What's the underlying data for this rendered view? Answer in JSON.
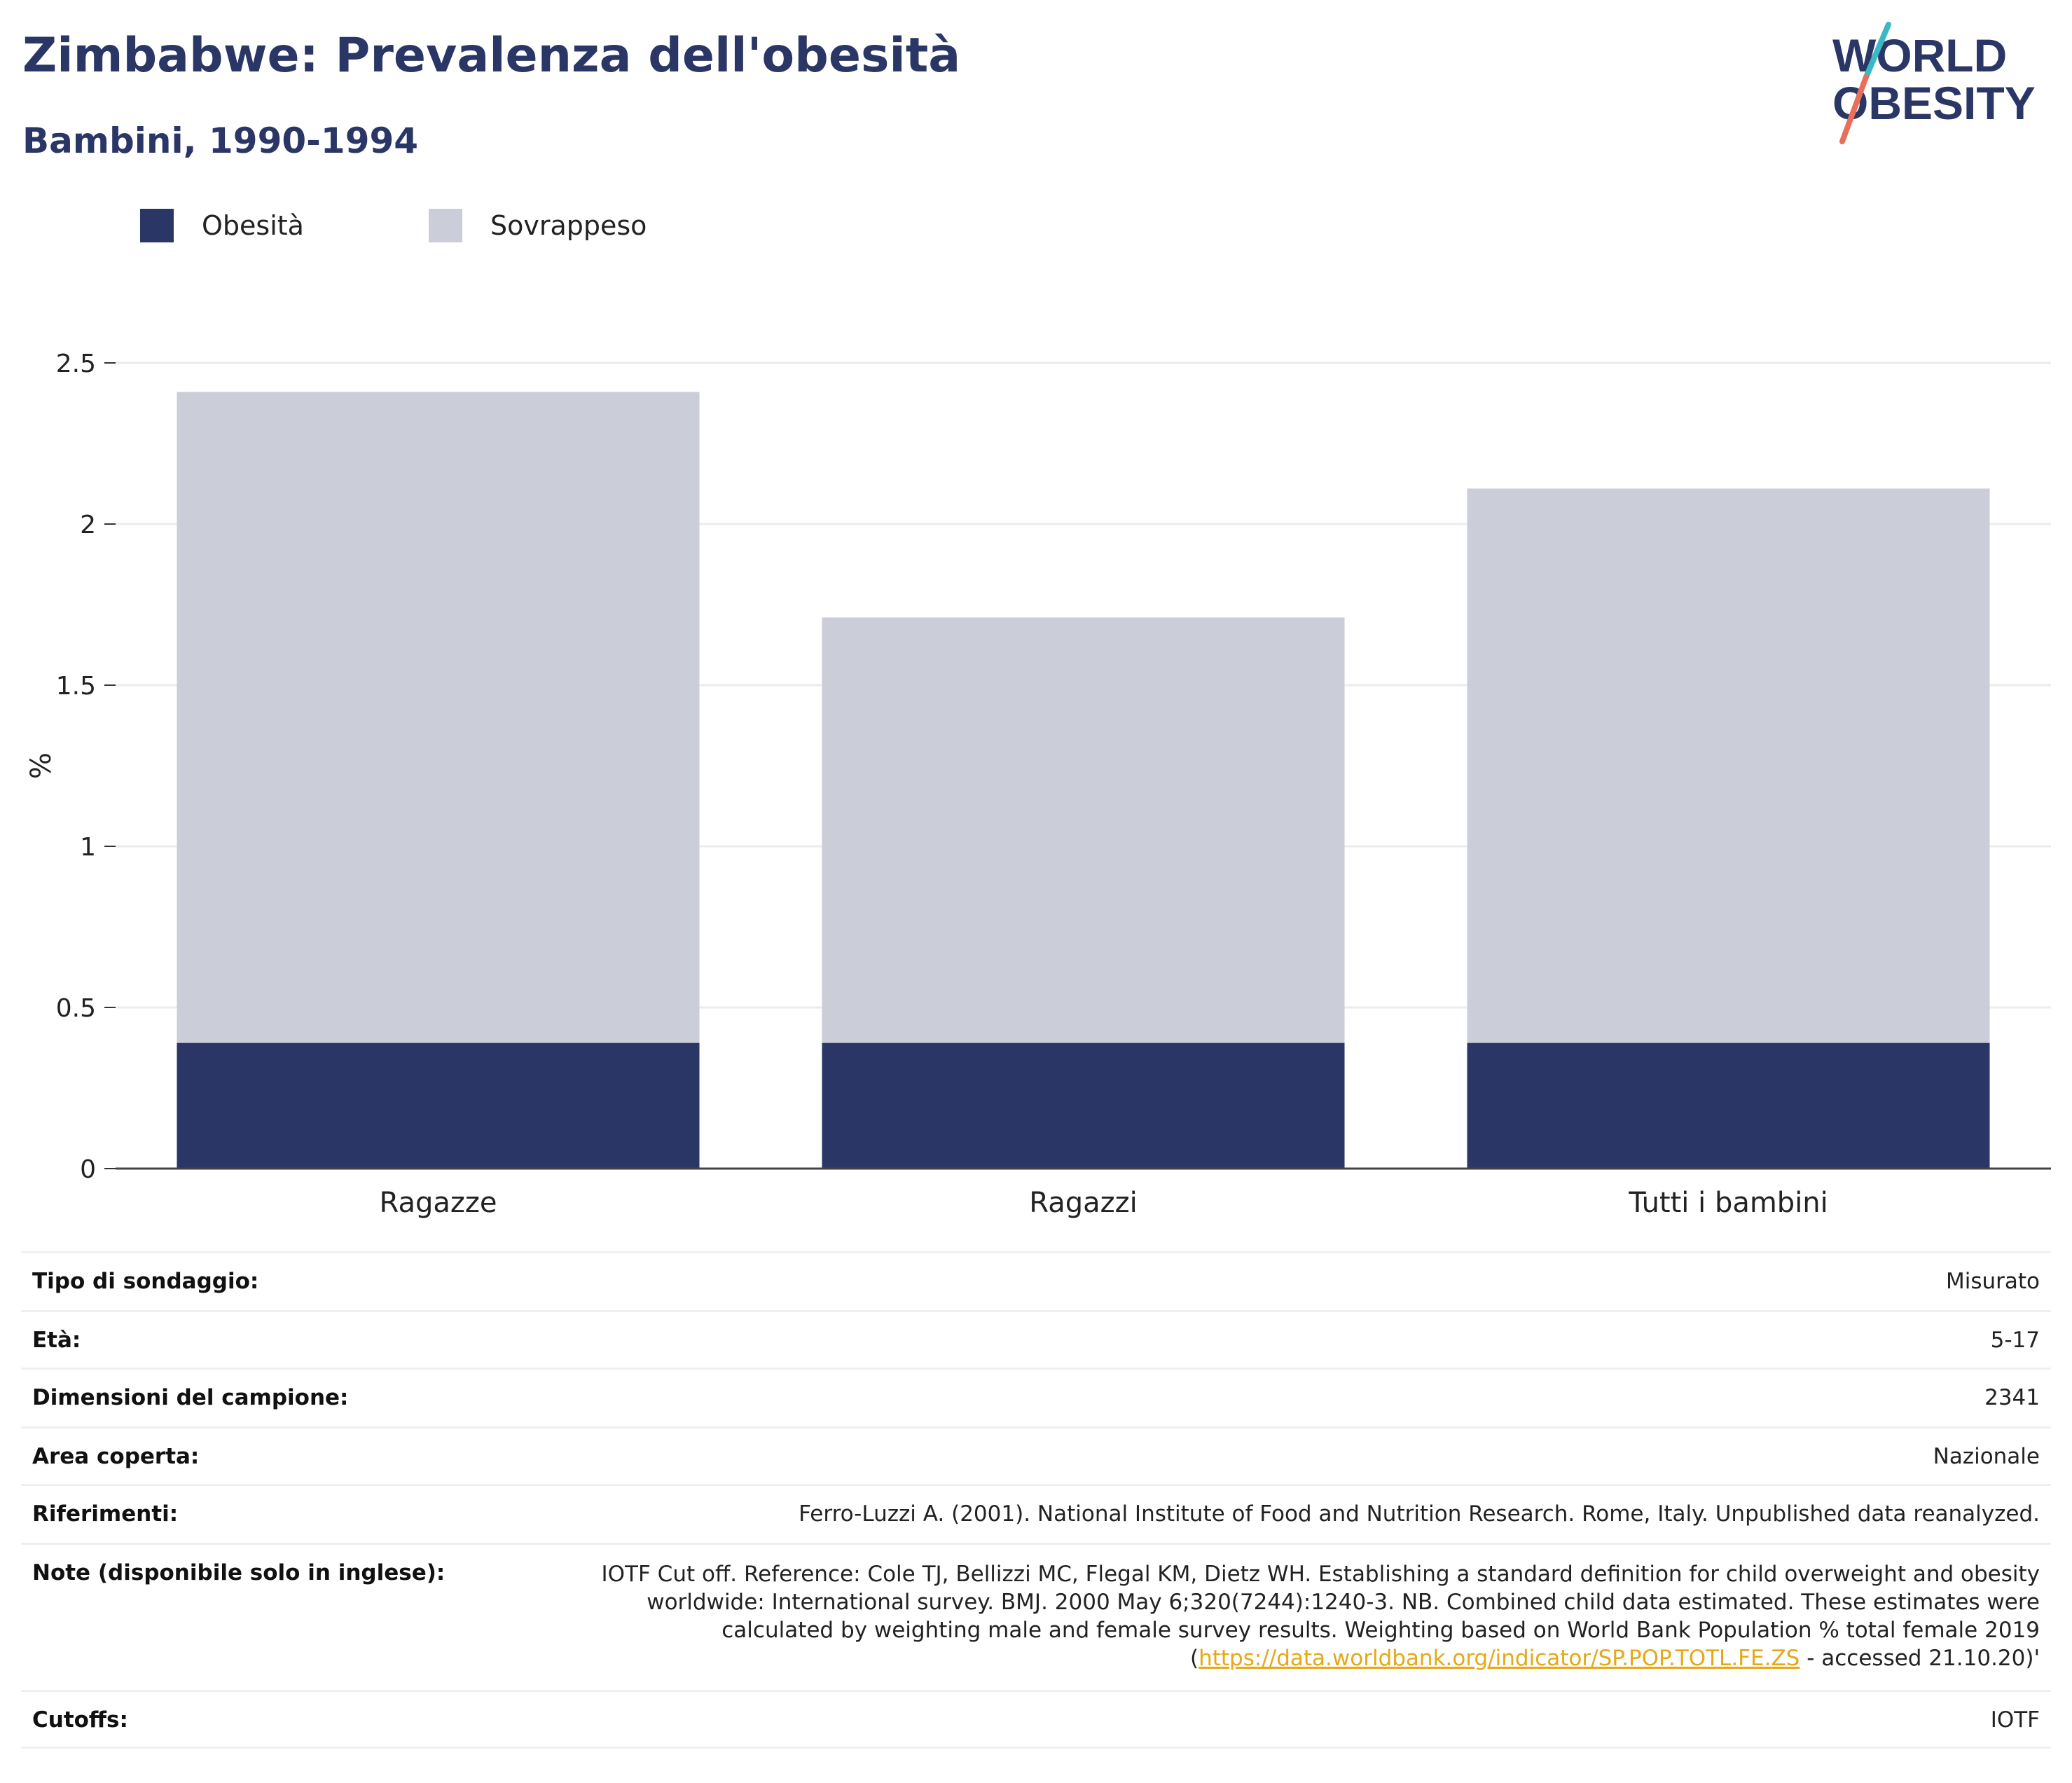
{
  "header": {
    "title": "Zimbabwe: Prevalenza dell'obesità",
    "subtitle": "Bambini, 1990-1994"
  },
  "logo": {
    "line1": "WORLD",
    "line2": "OBESITY"
  },
  "legend": [
    {
      "label": "Obesità",
      "color": "#2a3665"
    },
    {
      "label": "Sovrappeso",
      "color": "#cbcdd8"
    }
  ],
  "chart_data": {
    "type": "bar",
    "stacked": true,
    "categories": [
      "Ragazze",
      "Ragazzi",
      "Tutti i bambini"
    ],
    "series": [
      {
        "name": "Obesità",
        "color": "#2a3665",
        "values": [
          0.39,
          0.39,
          0.39
        ]
      },
      {
        "name": "Sovrappeso",
        "color": "#cbcdd8",
        "values": [
          2.02,
          1.32,
          1.72
        ]
      }
    ],
    "ylabel": "%",
    "ylim": [
      0,
      2.5
    ],
    "yticks": [
      "0",
      "0.5",
      "1",
      "1.5",
      "2",
      "2.5"
    ],
    "grid": true,
    "legend_position": "top-left"
  },
  "info": {
    "rows": [
      {
        "label": "Tipo di sondaggio:",
        "value": "Misurato"
      },
      {
        "label": "Età:",
        "value": "5-17"
      },
      {
        "label": "Dimensioni del campione:",
        "value": "2341"
      },
      {
        "label": "Area coperta:",
        "value": "Nazionale"
      },
      {
        "label": "Riferimenti:",
        "value": "Ferro-Luzzi A. (2001). National Institute of Food and Nutrition Research. Rome, Italy. Unpublished data reanalyzed."
      }
    ],
    "note": {
      "label": "Note (disponibile solo in inglese):",
      "text": "IOTF Cut off. Reference: Cole TJ, Bellizzi MC, Flegal KM, Dietz WH. Establishing a standard definition for child overweight and obesity worldwide: International survey. BMJ. 2000 May 6;320(7244):1240-3. NB. Combined child data estimated. These estimates were calculated by weighting male and female survey results. Weighting based on World Bank Population % total female 2019 (",
      "link": "https://data.worldbank.org/indicator/SP.POP.TOTL.FE.ZS",
      "suffix": " - accessed 21.10.20)'"
    },
    "cutoffs": {
      "label": "Cutoffs:",
      "value": "IOTF"
    }
  }
}
